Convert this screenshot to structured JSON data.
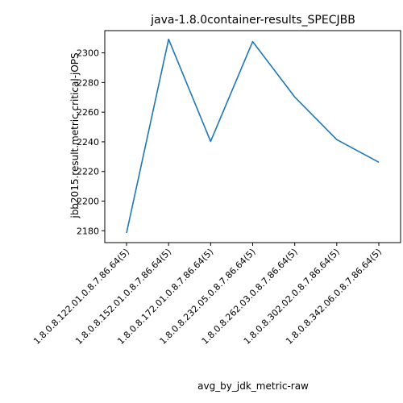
{
  "chart_data": {
    "type": "line",
    "title": "java-1.8.0container-results_SPECJBB",
    "xlabel": "avg_by_jdk_metric-raw",
    "ylabel": "jbb2015.result.metric.critical-jOPS",
    "categories": [
      "1.8.0.8.122.01.0.8.7.86.64(5)",
      "1.8.0.8.152.01.0.8.7.86.64(5)",
      "1.8.0.8.172.01.0.8.7.86.64(5)",
      "1.8.0.8.232.05.0.8.7.86.64(5)",
      "1.8.0.8.262.03.0.8.7.86.64(5)",
      "1.8.0.8.302.02.0.8.7.86.64(5)",
      "1.8.0.8.342.06.0.8.7.86.64(5)"
    ],
    "series": [
      {
        "values": [
          2178.5,
          2309.2,
          2240.3,
          2307.6,
          2270.2,
          2241.5,
          2226.2
        ],
        "color": "#1f77b4"
      }
    ],
    "ylim": [
      2172,
      2315
    ],
    "yticks": [
      2180,
      2200,
      2220,
      2240,
      2260,
      2280,
      2300
    ],
    "grid": false,
    "legend": "none"
  }
}
